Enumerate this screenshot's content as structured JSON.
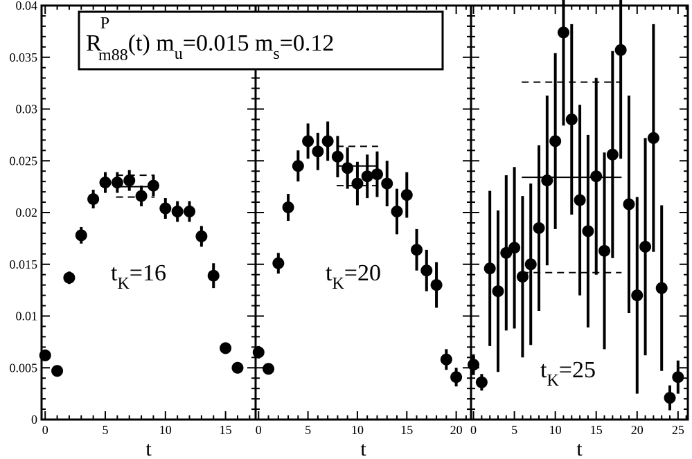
{
  "chart_data": {
    "type": "scatter",
    "ylim": [
      0,
      0.04
    ],
    "y_ticks": [
      0,
      0.005,
      0.01,
      0.015,
      0.02,
      0.025,
      0.03,
      0.035,
      0.04
    ],
    "y_tick_labels": [
      "0",
      "0.005",
      "0.01",
      "0.015",
      "0.02",
      "0.025",
      "0.03",
      "0.035",
      "0.04"
    ],
    "title": {
      "base": "R",
      "sup": "P",
      "sub": "m88",
      "arg": "(t) m",
      "mu_sub": "u",
      "mu_val": "=0.015 m",
      "ms_sub": "s",
      "ms_val": "=0.12"
    },
    "panels": [
      {
        "xlabel": "t",
        "xlim": [
          -0.3,
          17.5
        ],
        "x_ticks": [
          0,
          5,
          10,
          15
        ],
        "x_tick_labels": [
          "0",
          "5",
          "10",
          "15"
        ],
        "annotation": {
          "main": "t",
          "sub": "K",
          "value": "=16"
        },
        "points": [
          {
            "x": 0,
            "y": 0.0062,
            "err": 0.0004
          },
          {
            "x": 1,
            "y": 0.0047,
            "err": 0.0003
          },
          {
            "x": 2,
            "y": 0.0137,
            "err": 0.0006
          },
          {
            "x": 3,
            "y": 0.0178,
            "err": 0.0008
          },
          {
            "x": 4,
            "y": 0.0213,
            "err": 0.0009
          },
          {
            "x": 5,
            "y": 0.0229,
            "err": 0.001
          },
          {
            "x": 6,
            "y": 0.0229,
            "err": 0.001
          },
          {
            "x": 7,
            "y": 0.0231,
            "err": 0.001
          },
          {
            "x": 8,
            "y": 0.0216,
            "err": 0.001
          },
          {
            "x": 9,
            "y": 0.0226,
            "err": 0.001
          },
          {
            "x": 10,
            "y": 0.0204,
            "err": 0.001
          },
          {
            "x": 11,
            "y": 0.0201,
            "err": 0.001
          },
          {
            "x": 12,
            "y": 0.0201,
            "err": 0.001
          },
          {
            "x": 13,
            "y": 0.0177,
            "err": 0.001
          },
          {
            "x": 14,
            "y": 0.0139,
            "err": 0.0012
          },
          {
            "x": 15,
            "y": 0.0069,
            "err": 0.0005
          },
          {
            "x": 16,
            "y": 0.005,
            "err": 0.0004
          }
        ],
        "fit": {
          "x_range": [
            5.9,
            9.1
          ],
          "center": 0.0225,
          "upper": 0.0236,
          "lower": 0.0215
        }
      },
      {
        "xlabel": "t",
        "xlim": [
          -0.3,
          21.5
        ],
        "x_ticks": [
          0,
          5,
          10,
          15,
          20
        ],
        "x_tick_labels": [
          "0",
          "5",
          "10",
          "15",
          "20"
        ],
        "annotation": {
          "main": "t",
          "sub": "K",
          "value": "=20"
        },
        "points": [
          {
            "x": 0,
            "y": 0.0065,
            "err": 0.0006
          },
          {
            "x": 1,
            "y": 0.0049,
            "err": 0.0005
          },
          {
            "x": 2,
            "y": 0.0151,
            "err": 0.001
          },
          {
            "x": 3,
            "y": 0.0205,
            "err": 0.0013
          },
          {
            "x": 4,
            "y": 0.0245,
            "err": 0.0015
          },
          {
            "x": 5,
            "y": 0.0269,
            "err": 0.0017
          },
          {
            "x": 6,
            "y": 0.0259,
            "err": 0.0018
          },
          {
            "x": 7,
            "y": 0.0269,
            "err": 0.0019
          },
          {
            "x": 8,
            "y": 0.0254,
            "err": 0.002
          },
          {
            "x": 9,
            "y": 0.0243,
            "err": 0.002
          },
          {
            "x": 10,
            "y": 0.0228,
            "err": 0.0021
          },
          {
            "x": 11,
            "y": 0.0235,
            "err": 0.0021
          },
          {
            "x": 12,
            "y": 0.0237,
            "err": 0.0022
          },
          {
            "x": 13,
            "y": 0.0228,
            "err": 0.0022
          },
          {
            "x": 14,
            "y": 0.0201,
            "err": 0.0022
          },
          {
            "x": 15,
            "y": 0.0217,
            "err": 0.0022
          },
          {
            "x": 16,
            "y": 0.0164,
            "err": 0.002
          },
          {
            "x": 17,
            "y": 0.0144,
            "err": 0.002
          },
          {
            "x": 18,
            "y": 0.013,
            "err": 0.0022
          },
          {
            "x": 19,
            "y": 0.0058,
            "err": 0.001
          },
          {
            "x": 20,
            "y": 0.0041,
            "err": 0.0009
          }
        ],
        "fit": {
          "x_range": [
            7.9,
            12.1
          ],
          "center": 0.0245,
          "upper": 0.0264,
          "lower": 0.0226
        }
      },
      {
        "xlabel": "t",
        "xlim": [
          -0.3,
          26.2
        ],
        "x_ticks": [
          0,
          5,
          10,
          15,
          20,
          25
        ],
        "x_tick_labels": [
          "0",
          "5",
          "10",
          "15",
          "20",
          "25"
        ],
        "annotation": {
          "main": "t",
          "sub": "K",
          "value": "=25"
        },
        "points": [
          {
            "x": 0,
            "y": 0.0053,
            "err": 0.001
          },
          {
            "x": 1,
            "y": 0.0036,
            "err": 0.0008
          },
          {
            "x": 2,
            "y": 0.0146,
            "err": 0.0075
          },
          {
            "x": 3,
            "y": 0.0124,
            "err": 0.0078
          },
          {
            "x": 4,
            "y": 0.0161,
            "err": 0.0075
          },
          {
            "x": 5,
            "y": 0.0166,
            "err": 0.0078
          },
          {
            "x": 6,
            "y": 0.0138,
            "err": 0.0078
          },
          {
            "x": 7,
            "y": 0.015,
            "err": 0.0078
          },
          {
            "x": 8,
            "y": 0.0185,
            "err": 0.008
          },
          {
            "x": 9,
            "y": 0.0231,
            "err": 0.0082
          },
          {
            "x": 10,
            "y": 0.0269,
            "err": 0.0085
          },
          {
            "x": 11,
            "y": 0.0374,
            "err": 0.009
          },
          {
            "x": 12,
            "y": 0.029,
            "err": 0.0092
          },
          {
            "x": 13,
            "y": 0.0212,
            "err": 0.0092
          },
          {
            "x": 14,
            "y": 0.0182,
            "err": 0.0093
          },
          {
            "x": 15,
            "y": 0.0235,
            "err": 0.0095
          },
          {
            "x": 16,
            "y": 0.0163,
            "err": 0.0095
          },
          {
            "x": 17,
            "y": 0.0256,
            "err": 0.01
          },
          {
            "x": 18,
            "y": 0.0357,
            "err": 0.0105
          },
          {
            "x": 19,
            "y": 0.0208,
            "err": 0.0105
          },
          {
            "x": 20,
            "y": 0.012,
            "err": 0.0095
          },
          {
            "x": 21,
            "y": 0.0167,
            "err": 0.0105
          },
          {
            "x": 22,
            "y": 0.0272,
            "err": 0.011
          },
          {
            "x": 23,
            "y": 0.0127,
            "err": 0.008
          },
          {
            "x": 24,
            "y": 0.0021,
            "err": 0.0012
          },
          {
            "x": 25,
            "y": 0.0041,
            "err": 0.0016
          }
        ],
        "fit": {
          "x_range": [
            5.9,
            18.1
          ],
          "center": 0.0234,
          "upper": 0.0326,
          "lower": 0.0142
        }
      }
    ]
  }
}
